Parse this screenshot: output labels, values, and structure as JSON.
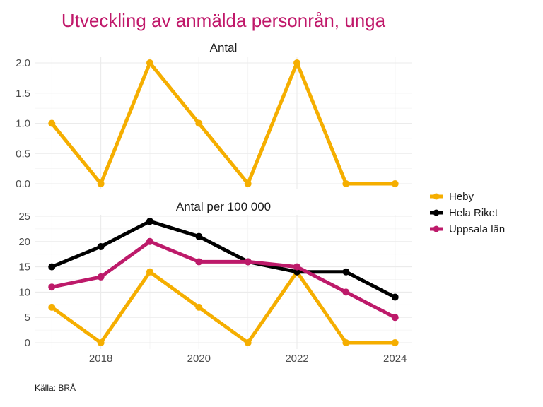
{
  "title": "Utveckling av anmälda personrån, unga",
  "caption": "Källa: BRÅ",
  "legend": {
    "position": "right",
    "items": [
      {
        "label": "Heby",
        "color": "#f5ae00"
      },
      {
        "label": "Hela Riket",
        "color": "#000000"
      },
      {
        "label": "Uppsala län",
        "color": "#bd1a6a"
      }
    ]
  },
  "chart_data": [
    {
      "type": "line",
      "title": "Antal",
      "xlabel": "",
      "ylabel": "",
      "x": [
        2017,
        2018,
        2019,
        2020,
        2021,
        2022,
        2023,
        2024
      ],
      "xlim": [
        2016.65,
        2024.35
      ],
      "ylim": [
        0,
        2.0
      ],
      "yticks": [
        0.0,
        0.5,
        1.0,
        1.5,
        2.0
      ],
      "ytick_labels": [
        "0.0",
        "0.5",
        "1.0",
        "1.5",
        "2.0"
      ],
      "grid": true,
      "series": [
        {
          "name": "Heby",
          "color": "#f5ae00",
          "values": [
            1,
            0,
            2,
            1,
            0,
            2,
            0,
            0
          ]
        }
      ]
    },
    {
      "type": "line",
      "title": "Antal per 100 000",
      "xlabel": "",
      "ylabel": "",
      "x": [
        2017,
        2018,
        2019,
        2020,
        2021,
        2022,
        2023,
        2024
      ],
      "xticks": [
        2018,
        2020,
        2022,
        2024
      ],
      "xtick_labels": [
        "2018",
        "2020",
        "2022",
        "2024"
      ],
      "xlim": [
        2016.65,
        2024.35
      ],
      "ylim": [
        0,
        25
      ],
      "yticks": [
        0,
        5,
        10,
        15,
        20,
        25
      ],
      "ytick_labels": [
        "0",
        "5",
        "10",
        "15",
        "20",
        "25"
      ],
      "grid": true,
      "series": [
        {
          "name": "Heby",
          "color": "#f5ae00",
          "values": [
            7,
            0,
            14,
            7,
            0,
            14,
            0,
            0
          ]
        },
        {
          "name": "Hela Riket",
          "color": "#000000",
          "values": [
            15,
            19,
            24,
            21,
            16,
            14,
            14,
            9
          ]
        },
        {
          "name": "Uppsala län",
          "color": "#bd1a6a",
          "values": [
            11,
            13,
            20,
            16,
            16,
            15,
            10,
            5
          ]
        }
      ]
    }
  ]
}
